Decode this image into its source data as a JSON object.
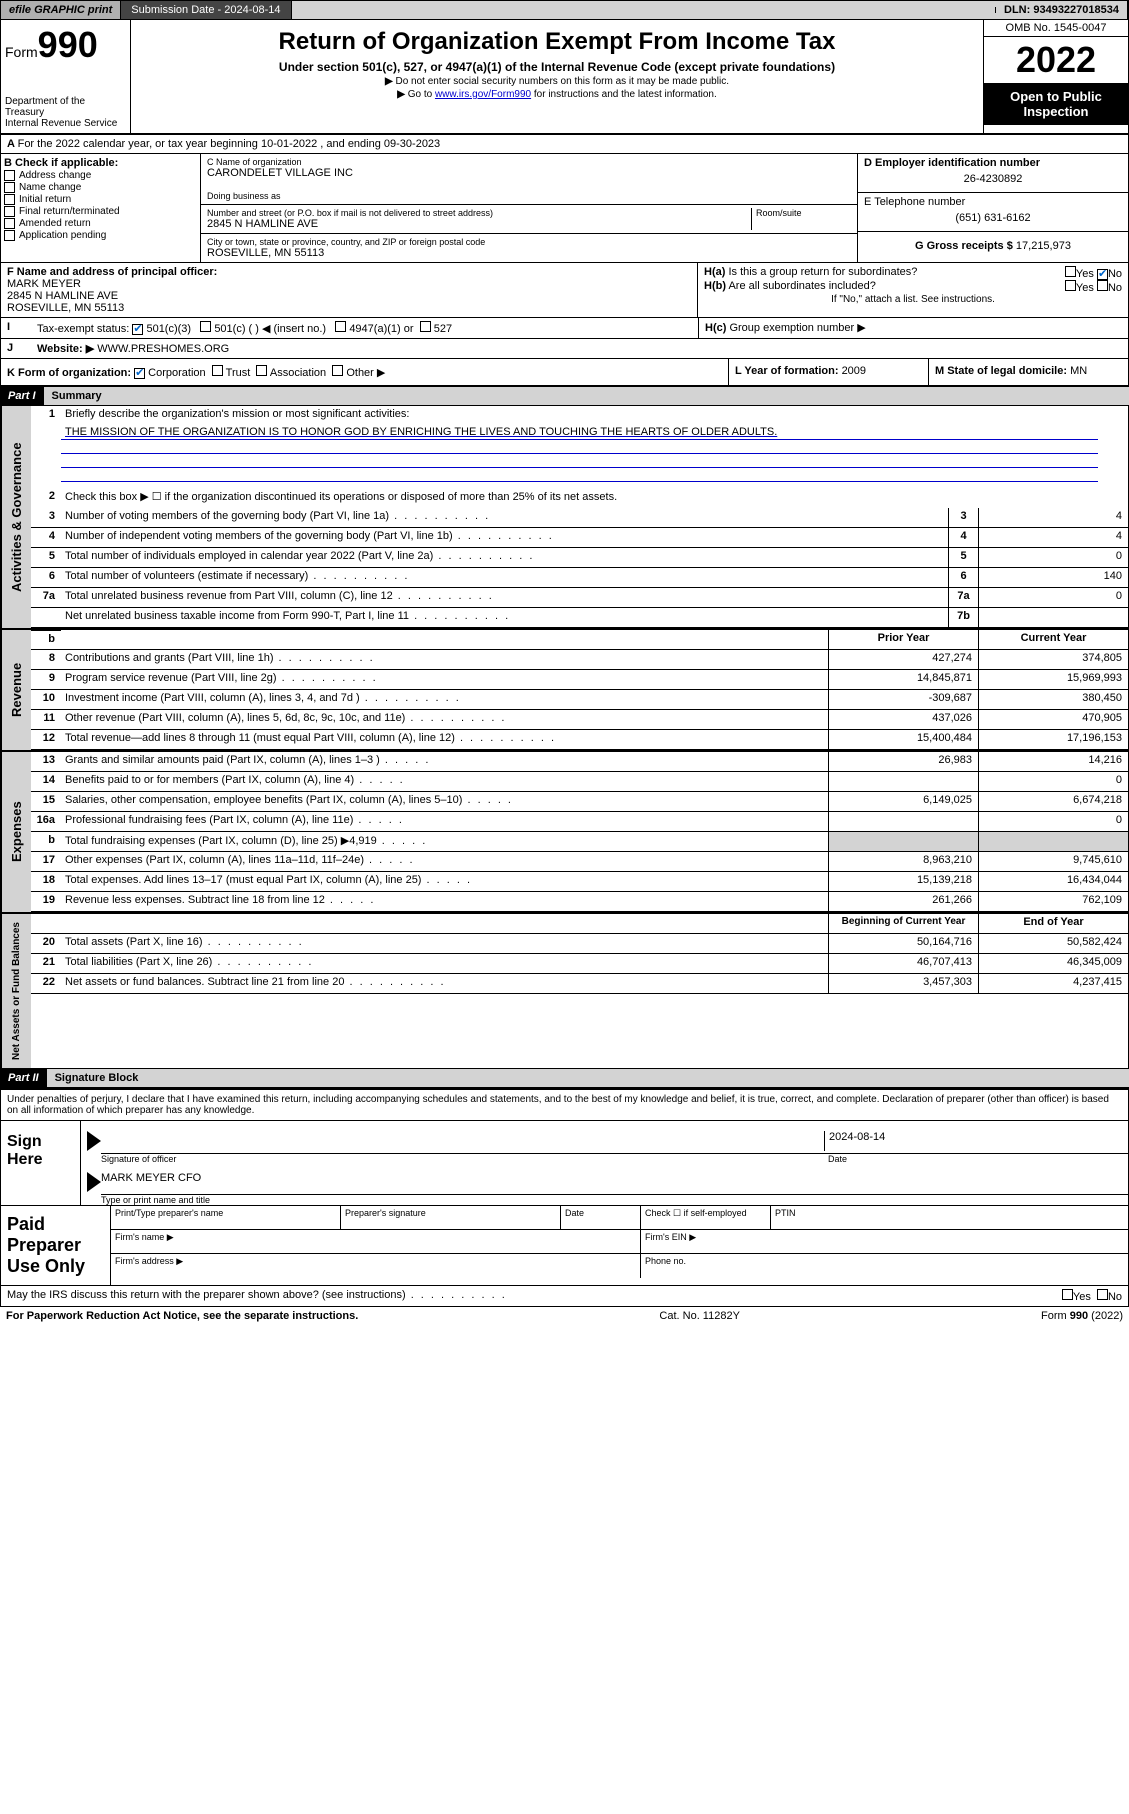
{
  "topbar": {
    "print": "efile GRAPHIC print",
    "submission_label": "Submission Date - 2024-08-14",
    "dln": "DLN: 93493227018534"
  },
  "header": {
    "form_prefix": "Form",
    "form_num": "990",
    "title": "Return of Organization Exempt From Income Tax",
    "subtitle": "Under section 501(c), 527, or 4947(a)(1) of the Internal Revenue Code (except private foundations)",
    "instr1": "Do not enter social security numbers on this form as it may be made public.",
    "instr2_pre": "Go to ",
    "instr2_link": "www.irs.gov/Form990",
    "instr2_post": " for instructions and the latest information.",
    "dept": "Department of the Treasury",
    "irs": "Internal Revenue Service",
    "omb": "OMB No. 1545-0047",
    "year": "2022",
    "open": "Open to Public Inspection"
  },
  "lineA": {
    "text": "For the 2022 calendar year, or tax year beginning 10-01-2022   , and ending 09-30-2023"
  },
  "colB": {
    "label": "B Check if applicable:",
    "items": [
      "Address change",
      "Name change",
      "Initial return",
      "Final return/terminated",
      "Amended return",
      "Application pending"
    ]
  },
  "colC": {
    "name_label": "C Name of organization",
    "name": "CARONDELET VILLAGE INC",
    "dba_label": "Doing business as",
    "addr_label": "Number and street (or P.O. box if mail is not delivered to street address)",
    "room_label": "Room/suite",
    "addr": "2845 N HAMLINE AVE",
    "city_label": "City or town, state or province, country, and ZIP or foreign postal code",
    "city": "ROSEVILLE, MN  55113"
  },
  "colD": {
    "ein_label": "D Employer identification number",
    "ein": "26-4230892",
    "phone_label": "E Telephone number",
    "phone": "(651) 631-6162",
    "gross_label": "G Gross receipts $ ",
    "gross": "17,215,973"
  },
  "rowF": {
    "label": "F  Name and address of principal officer:",
    "name": "MARK MEYER",
    "addr1": "2845 N HAMLINE AVE",
    "addr2": "ROSEVILLE, MN  55113"
  },
  "rowH": {
    "ha": "Is this a group return for subordinates?",
    "hb": "Are all subordinates included?",
    "hb_note": "If \"No,\" attach a list. See instructions.",
    "hc": "Group exemption number ▶"
  },
  "rowI": {
    "label": "Tax-exempt status:",
    "opt1": "501(c)(3)",
    "opt2": "501(c) (  ) ◀ (insert no.)",
    "opt3": "4947(a)(1) or",
    "opt4": "527"
  },
  "rowJ": {
    "label": "Website: ▶",
    "val": "WWW.PRESHOMES.ORG"
  },
  "rowK": {
    "label": "K Form of organization:",
    "opts": [
      "Corporation",
      "Trust",
      "Association",
      "Other ▶"
    ],
    "yof_label": "L Year of formation: ",
    "yof": "2009",
    "domicile_label": "M State of legal domicile: ",
    "domicile": "MN"
  },
  "part1": {
    "hdr": "Part I",
    "title": "Summary",
    "q1": "Briefly describe the organization's mission or most significant activities:",
    "mission": "THE MISSION OF THE ORGANIZATION IS TO HONOR GOD BY ENRICHING THE LIVES AND TOUCHING THE HEARTS OF OLDER ADULTS.",
    "q2": "Check this box ▶ ☐  if the organization discontinued its operations or disposed of more than 25% of its net assets.",
    "rows_gov": [
      {
        "n": "3",
        "d": "Number of voting members of the governing body (Part VI, line 1a)",
        "box": "3",
        "v": "4"
      },
      {
        "n": "4",
        "d": "Number of independent voting members of the governing body (Part VI, line 1b)",
        "box": "4",
        "v": "4"
      },
      {
        "n": "5",
        "d": "Total number of individuals employed in calendar year 2022 (Part V, line 2a)",
        "box": "5",
        "v": "0"
      },
      {
        "n": "6",
        "d": "Total number of volunteers (estimate if necessary)",
        "box": "6",
        "v": "140"
      },
      {
        "n": "7a",
        "d": "Total unrelated business revenue from Part VIII, column (C), line 12",
        "box": "7a",
        "v": "0"
      },
      {
        "n": "",
        "d": "Net unrelated business taxable income from Form 990-T, Part I, line 11",
        "box": "7b",
        "v": ""
      }
    ],
    "col_hdrs": {
      "prior": "Prior Year",
      "current": "Current Year"
    },
    "rows_rev": [
      {
        "n": "8",
        "d": "Contributions and grants (Part VIII, line 1h)",
        "p": "427,274",
        "c": "374,805"
      },
      {
        "n": "9",
        "d": "Program service revenue (Part VIII, line 2g)",
        "p": "14,845,871",
        "c": "15,969,993"
      },
      {
        "n": "10",
        "d": "Investment income (Part VIII, column (A), lines 3, 4, and 7d )",
        "p": "-309,687",
        "c": "380,450"
      },
      {
        "n": "11",
        "d": "Other revenue (Part VIII, column (A), lines 5, 6d, 8c, 9c, 10c, and 11e)",
        "p": "437,026",
        "c": "470,905"
      },
      {
        "n": "12",
        "d": "Total revenue—add lines 8 through 11 (must equal Part VIII, column (A), line 12)",
        "p": "15,400,484",
        "c": "17,196,153"
      }
    ],
    "rows_exp": [
      {
        "n": "13",
        "d": "Grants and similar amounts paid (Part IX, column (A), lines 1–3 )",
        "p": "26,983",
        "c": "14,216"
      },
      {
        "n": "14",
        "d": "Benefits paid to or for members (Part IX, column (A), line 4)",
        "p": "",
        "c": "0"
      },
      {
        "n": "15",
        "d": "Salaries, other compensation, employee benefits (Part IX, column (A), lines 5–10)",
        "p": "6,149,025",
        "c": "6,674,218"
      },
      {
        "n": "16a",
        "d": "Professional fundraising fees (Part IX, column (A), line 11e)",
        "p": "",
        "c": "0"
      },
      {
        "n": "b",
        "d": "Total fundraising expenses (Part IX, column (D), line 25) ▶4,919",
        "p": "grey",
        "c": "grey"
      },
      {
        "n": "17",
        "d": "Other expenses (Part IX, column (A), lines 11a–11d, 11f–24e)",
        "p": "8,963,210",
        "c": "9,745,610"
      },
      {
        "n": "18",
        "d": "Total expenses. Add lines 13–17 (must equal Part IX, column (A), line 25)",
        "p": "15,139,218",
        "c": "16,434,044"
      },
      {
        "n": "19",
        "d": "Revenue less expenses. Subtract line 18 from line 12",
        "p": "261,266",
        "c": "762,109"
      }
    ],
    "col_hdrs2": {
      "begin": "Beginning of Current Year",
      "end": "End of Year"
    },
    "rows_net": [
      {
        "n": "20",
        "d": "Total assets (Part X, line 16)",
        "p": "50,164,716",
        "c": "50,582,424"
      },
      {
        "n": "21",
        "d": "Total liabilities (Part X, line 26)",
        "p": "46,707,413",
        "c": "46,345,009"
      },
      {
        "n": "22",
        "d": "Net assets or fund balances. Subtract line 21 from line 20",
        "p": "3,457,303",
        "c": "4,237,415"
      }
    ]
  },
  "part2": {
    "hdr": "Part II",
    "title": "Signature Block",
    "decl": "Under penalties of perjury, I declare that I have examined this return, including accompanying schedules and statements, and to the best of my knowledge and belief, it is true, correct, and complete. Declaration of preparer (other than officer) is based on all information of which preparer has any knowledge.",
    "sign_here": "Sign Here",
    "sig_officer": "Signature of officer",
    "sig_date": "2024-08-14",
    "date_label": "Date",
    "officer_name": "MARK MEYER CFO",
    "type_name": "Type or print name and title",
    "paid": "Paid Preparer Use Only",
    "pg_hdrs": [
      "Print/Type preparer's name",
      "Preparer's signature",
      "Date"
    ],
    "check_self": "Check ☐ if self-employed",
    "ptin": "PTIN",
    "firm_name": "Firm's name  ▶",
    "firm_ein": "Firm's EIN ▶",
    "firm_addr": "Firm's address ▶",
    "phone": "Phone no."
  },
  "footer": {
    "discuss": "May the IRS discuss this return with the preparer shown above? (see instructions)",
    "paperwork": "For Paperwork Reduction Act Notice, see the separate instructions.",
    "cat": "Cat. No. 11282Y",
    "form": "Form 990 (2022)"
  },
  "tabs": {
    "gov": "Activities & Governance",
    "rev": "Revenue",
    "exp": "Expenses",
    "net": "Net Assets or Fund Balances"
  }
}
